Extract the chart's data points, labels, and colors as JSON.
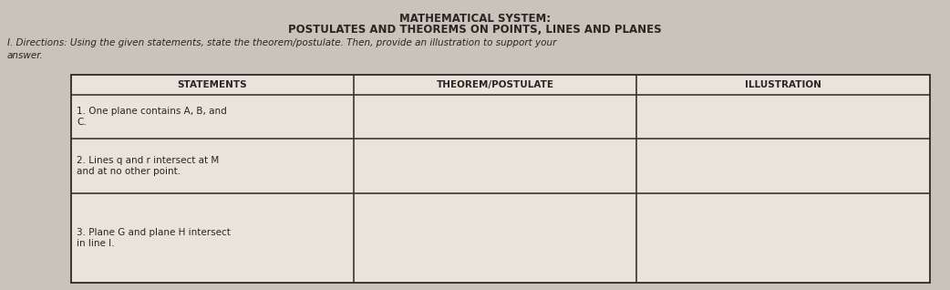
{
  "bg_color": "#c8c4bc",
  "paper_color": "#d8d4cc",
  "title1": "MATHEMATICAL SYSTEM:",
  "title2": "POSTULATES AND THEOREMS ON POINTS, LINES AND PLANES",
  "directions_line1": "I. Directions: Using the given statements, state the theorem/postulate. Then, provide an illustration to support your",
  "directions_line2": "answer.",
  "col_headers": [
    "STATEMENTS",
    "THEOREM/POSTULATE",
    "ILLUSTRATION"
  ],
  "rows": [
    [
      "1. One plane contains A, B, and\nC.",
      "",
      ""
    ],
    [
      "2. Lines q and r intersect at M\nand at no other point.",
      "",
      ""
    ],
    [
      "3. Plane G and plane H intersect\nin line l.",
      "",
      ""
    ]
  ],
  "title_fontsize": 8.5,
  "header_fontsize": 7.5,
  "body_fontsize": 7.5,
  "directions_fontsize": 7.5
}
